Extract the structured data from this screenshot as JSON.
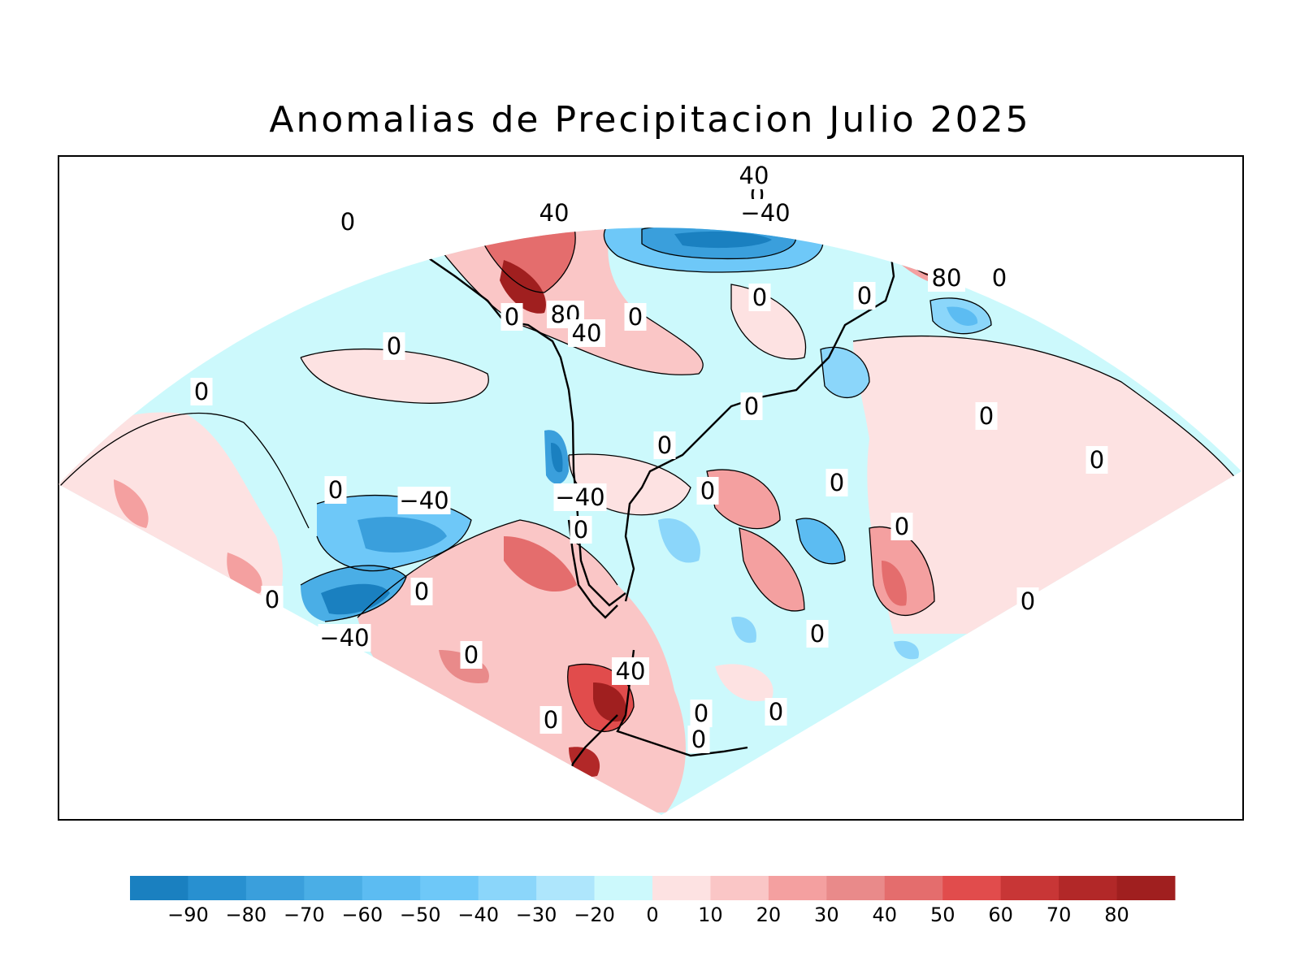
{
  "title": "Anomalias de Precipitacion Julio 2025",
  "colorbar": {
    "colors": [
      "#1a80c0",
      "#2890d0",
      "#3a9fdc",
      "#4aaee6",
      "#5cbcf2",
      "#6ec8f8",
      "#8bd6fa",
      "#aee6fc",
      "#ccf9fc",
      "#fde2e2",
      "#fac6c6",
      "#f4a0a0",
      "#e98a8a",
      "#e46d6d",
      "#e14c4c",
      "#c83636",
      "#b22828",
      "#a01f1f"
    ],
    "tick_labels": [
      "−90",
      "−80",
      "−70",
      "−60",
      "−50",
      "−40",
      "−30",
      "−20",
      "0",
      "10",
      "20",
      "30",
      "40",
      "50",
      "60",
      "70",
      "80"
    ]
  },
  "contour_labels": [
    {
      "text": "40"
    },
    {
      "text": "0"
    },
    {
      "text": "−40"
    },
    {
      "text": "40"
    },
    {
      "text": "0"
    },
    {
      "text": "0"
    },
    {
      "text": "80"
    },
    {
      "text": "0"
    },
    {
      "text": "40"
    },
    {
      "text": "0"
    },
    {
      "text": "0"
    },
    {
      "text": "80"
    },
    {
      "text": "0"
    },
    {
      "text": "0"
    },
    {
      "text": "0"
    },
    {
      "text": "0"
    },
    {
      "text": "0"
    },
    {
      "text": "0"
    },
    {
      "text": "0"
    },
    {
      "text": "0"
    },
    {
      "text": "0"
    },
    {
      "text": "−40"
    },
    {
      "text": "−40"
    },
    {
      "text": "0"
    },
    {
      "text": "0"
    },
    {
      "text": "0"
    },
    {
      "text": "0"
    },
    {
      "text": "0"
    },
    {
      "text": "0"
    },
    {
      "text": "−40"
    },
    {
      "text": "0"
    },
    {
      "text": "0"
    },
    {
      "text": "40"
    },
    {
      "text": "0"
    },
    {
      "text": "0"
    },
    {
      "text": "0"
    },
    {
      "text": "0"
    }
  ]
}
